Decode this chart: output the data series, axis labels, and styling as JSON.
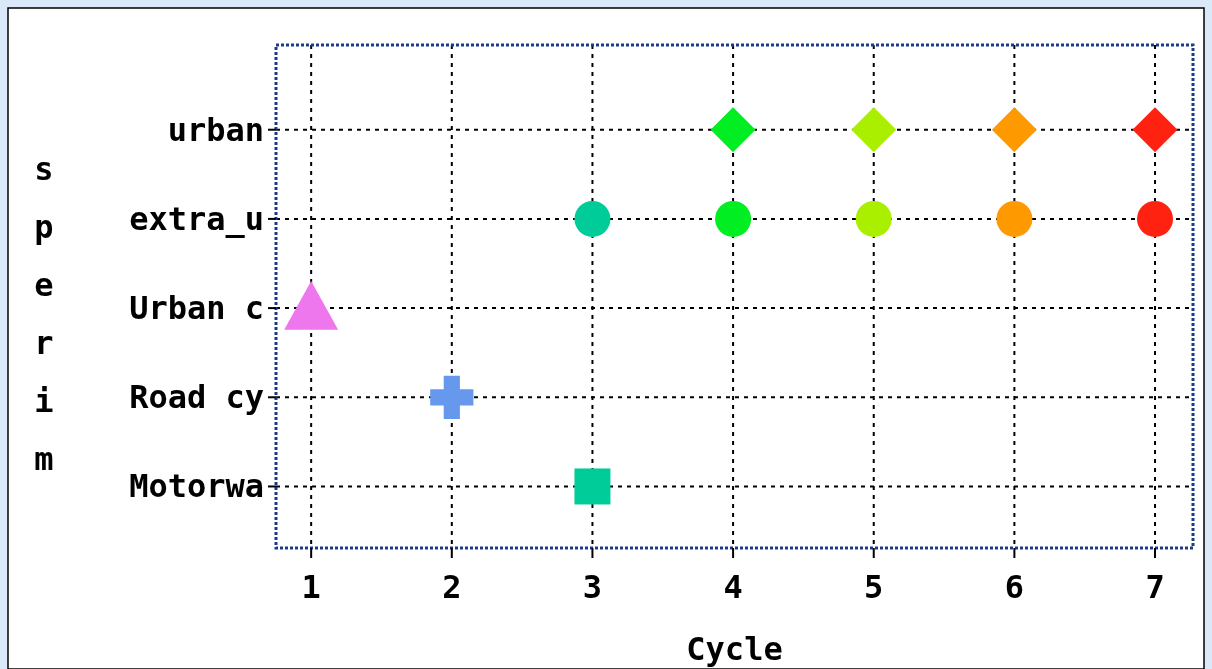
{
  "chart_data": {
    "type": "scatter",
    "orientation": "horizontal",
    "xlabel": "Cycle",
    "ylabel": "sperim",
    "categories": [
      "urban",
      "extra_u",
      "Urban c",
      "Road cy",
      "Motorwa"
    ],
    "xlim": [
      0.75,
      7.27
    ],
    "xticks": [
      1,
      2,
      3,
      4,
      5,
      6,
      7
    ],
    "grid": true,
    "series": [
      {
        "color": "#00ee22",
        "marker": "diamond",
        "values": [
          4,
          null,
          null,
          null,
          null
        ]
      },
      {
        "color": "#aaee00",
        "marker": "diamond",
        "values": [
          5,
          null,
          null,
          null,
          null
        ]
      },
      {
        "color": "#ff9900",
        "marker": "diamond",
        "values": [
          6,
          null,
          null,
          null,
          null
        ]
      },
      {
        "color": "#ff2211",
        "marker": "diamond",
        "values": [
          7,
          null,
          null,
          null,
          null
        ]
      },
      {
        "color": "#00cc99",
        "marker": "circle",
        "values": [
          null,
          3,
          null,
          null,
          null
        ]
      },
      {
        "color": "#00ee22",
        "marker": "circle",
        "values": [
          null,
          4,
          null,
          null,
          null
        ]
      },
      {
        "color": "#aaee00",
        "marker": "circle",
        "values": [
          null,
          5,
          null,
          null,
          null
        ]
      },
      {
        "color": "#ff9900",
        "marker": "circle",
        "values": [
          null,
          6,
          null,
          null,
          null
        ]
      },
      {
        "color": "#ff2211",
        "marker": "circle",
        "values": [
          null,
          7,
          null,
          null,
          null
        ]
      },
      {
        "color": "#ee77ee",
        "marker": "triangle",
        "values": [
          null,
          null,
          1,
          null,
          null
        ]
      },
      {
        "color": "#6699ee",
        "marker": "cross",
        "values": [
          null,
          null,
          null,
          2,
          null
        ]
      },
      {
        "color": "#00cc99",
        "marker": "square",
        "values": [
          null,
          null,
          null,
          null,
          3
        ]
      }
    ]
  }
}
